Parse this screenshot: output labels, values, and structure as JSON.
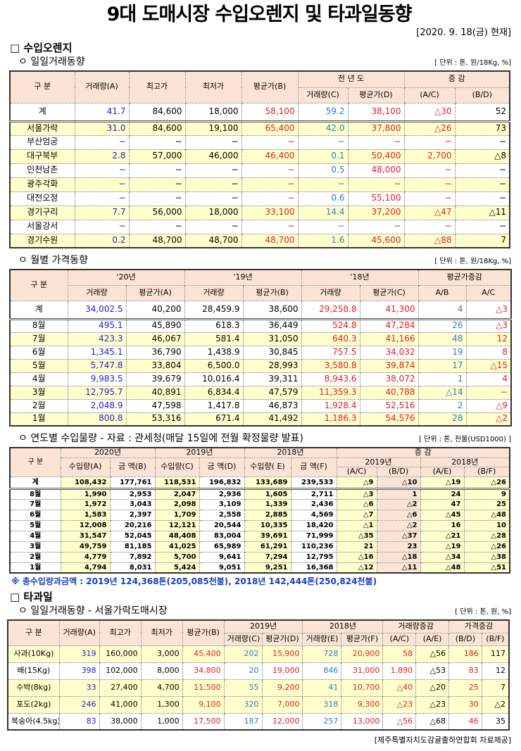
{
  "title": "9대 도매시장 수입오렌지 및 타과일동향",
  "date": "[2020. 9. 18(금) 현재]",
  "colors": {
    "blue": "#2222cc",
    "red": "#e02020",
    "teal": "#2a7fc0",
    "black": "#000000",
    "yellow": "#ffffcc",
    "peach": "#fbe4d5"
  },
  "sec1": {
    "title": "□ 수입오렌지",
    "daily": {
      "subtitle": "ㅇ 일일거래동향",
      "unit": "[ 단위 : 톤, 원/18Kg, %]",
      "headers": [
        "구    분",
        "거래량(A)",
        "최고가",
        "최저가",
        "평균가(B)",
        "전 년 도",
        "거래량(C)",
        "평균가(D)",
        "증    감",
        "(A/C)",
        "(B/D)"
      ],
      "col_colors": [
        "black",
        "blue",
        "black",
        "black",
        "red",
        "teal",
        "red",
        "red",
        "black"
      ],
      "rows": [
        {
          "yellow": false,
          "cells": [
            "계",
            "41.7",
            "84,600",
            "18,000",
            "58,100",
            "59.2",
            "38,100",
            "△30",
            "52"
          ]
        },
        {
          "yellow": true,
          "cells": [
            "서울가락",
            "31.0",
            "84,600",
            "19,100",
            "65,400",
            "42.0",
            "37,800",
            "△26",
            "73"
          ]
        },
        {
          "yellow": false,
          "cells": [
            "부산엄궁",
            "−",
            "−",
            "−",
            "−",
            "−",
            "−",
            "−",
            "−"
          ]
        },
        {
          "yellow": true,
          "cells": [
            "대구북부",
            "2.8",
            "57,000",
            "46,000",
            "46,400",
            "0.1",
            "50,400",
            "2,700",
            "△8"
          ]
        },
        {
          "yellow": false,
          "cells": [
            "인천남촌",
            "−",
            "−",
            "−",
            "−",
            "0.5",
            "48,000",
            "−",
            "−"
          ]
        },
        {
          "yellow": true,
          "cells": [
            "광주각화",
            "−",
            "−",
            "−",
            "−",
            "−",
            "−",
            "−",
            "−"
          ]
        },
        {
          "yellow": false,
          "cells": [
            "대전오정",
            "−",
            "−",
            "−",
            "−",
            "0.6",
            "55,100",
            "−",
            "−"
          ]
        },
        {
          "yellow": true,
          "cells": [
            "경기구리",
            "7.7",
            "56,000",
            "18,000",
            "33,100",
            "14.4",
            "37,200",
            "△47",
            "△11"
          ]
        },
        {
          "yellow": false,
          "cells": [
            "서울강서",
            "−",
            "−",
            "−",
            "−",
            "−",
            "−",
            "−",
            "−"
          ]
        },
        {
          "yellow": true,
          "cells": [
            "경기수원",
            "0.2",
            "48,700",
            "48,700",
            "48,700",
            "1.6",
            "45,600",
            "△88",
            "7"
          ]
        }
      ]
    },
    "monthly": {
      "subtitle": "ㅇ 월별 가격동향",
      "unit": "[ 단위 : 톤, 원/18Kg, %]",
      "headers": [
        "구    분",
        "'20년",
        "'19년",
        "'18년",
        "평균가증감",
        "거래량",
        "평균가(A)",
        "거래량",
        "평균가(B)",
        "거래량",
        "평균가(C)",
        "A/B",
        "A/C"
      ],
      "col_colors": [
        "black",
        "blue",
        "black",
        "black",
        "black",
        "red",
        "red",
        "teal",
        "red"
      ],
      "rows": [
        {
          "yellow": false,
          "cells": [
            "계",
            "34,002.5",
            "40,200",
            "28,459.9",
            "38,600",
            "29,258.8",
            "41,300",
            "4",
            "△3"
          ]
        },
        {
          "yellow": false,
          "cells": [
            "8월",
            "495.1",
            "45,890",
            "618.3",
            "36,449",
            "524.8",
            "47,284",
            "26",
            "△3"
          ]
        },
        {
          "yellow": true,
          "cells": [
            "7월",
            "423.3",
            "46,067",
            "581.4",
            "31,050",
            "640.3",
            "41,166",
            "48",
            "12"
          ]
        },
        {
          "yellow": false,
          "cells": [
            "6월",
            "1,345.1",
            "36,790",
            "1,438.9",
            "30,845",
            "757.5",
            "34,032",
            "19",
            "8"
          ]
        },
        {
          "yellow": true,
          "cells": [
            "5월",
            "5,747.8",
            "33,804",
            "6,500.0",
            "28,993",
            "3,580.8",
            "39,874",
            "17",
            "△15"
          ]
        },
        {
          "yellow": false,
          "cells": [
            "4월",
            "9,983.5",
            "39,679",
            "10,016.4",
            "39,311",
            "8,943.6",
            "38,072",
            "1",
            "4"
          ]
        },
        {
          "yellow": true,
          "cells": [
            "3월",
            "12,795.7",
            "40,891",
            "6,834.4",
            "47,579",
            "11,359.3",
            "40,788",
            "△14",
            "−"
          ]
        },
        {
          "yellow": false,
          "cells": [
            "2월",
            "2,048.9",
            "47,598",
            "1,417.8",
            "46,873",
            "1,928.4",
            "52,516",
            "2",
            "△9"
          ]
        },
        {
          "yellow": true,
          "cells": [
            "1월",
            "800.8",
            "53,316",
            "671.4",
            "41,492",
            "1,186.3",
            "54,576",
            "28",
            "△2"
          ]
        }
      ]
    },
    "yearly": {
      "subtitle": "ㅇ 연도별 수입물량 - 자료 : 관세청(매달 15일에 전월 확정물량 발표)",
      "unit": "[ 단위 : 톤, 천불(USD1000) ]",
      "headers": [
        "구 분",
        "2020년",
        "2019년",
        "2018년",
        "증    감",
        "수입량(A)",
        "금  액(B)",
        "수입량(C)",
        "금  액(D)",
        "수입량( E)",
        "금  액(F)",
        "2019년",
        "2018년",
        "(A/C)",
        "(B/D)",
        "(A/E)",
        "(B/F)"
      ],
      "rows": [
        {
          "cells": [
            "계",
            "108,432",
            "177,761",
            "118,531",
            "196,832",
            "133,689",
            "239,533",
            "△9",
            "△10",
            "△19",
            "△26"
          ]
        },
        {
          "cells": [
            "8월",
            "1,990",
            "2,953",
            "2,047",
            "2,936",
            "1,605",
            "2,711",
            "△3",
            "1",
            "24",
            "9"
          ]
        },
        {
          "cells": [
            "7월",
            "1,972",
            "3,043",
            "2,098",
            "3,109",
            "1,339",
            "2,436",
            "△6",
            "△2",
            "47",
            "25"
          ]
        },
        {
          "cells": [
            "6월",
            "1,583",
            "2,397",
            "1,709",
            "2,558",
            "2,885",
            "4,569",
            "△7",
            "△6",
            "△45",
            "△48"
          ]
        },
        {
          "cells": [
            "5월",
            "12,008",
            "20,216",
            "12,121",
            "20,544",
            "10,335",
            "18,420",
            "△1",
            "△2",
            "16",
            "10"
          ]
        },
        {
          "cells": [
            "4월",
            "31,547",
            "52,045",
            "48,408",
            "83,004",
            "39,691",
            "71,999",
            "△35",
            "△37",
            "△21",
            "△28"
          ]
        },
        {
          "cells": [
            "3월",
            "49,759",
            "81,185",
            "41,025",
            "65,989",
            "61,291",
            "110,236",
            "21",
            "23",
            "△19",
            "△26"
          ]
        },
        {
          "cells": [
            "2월",
            "4,779",
            "7,892",
            "5,700",
            "9,641",
            "7,294",
            "12,795",
            "△16",
            "△18",
            "△34",
            "△38"
          ]
        },
        {
          "cells": [
            "1월",
            "4,794",
            "8,031",
            "5,424",
            "9,051",
            "9,251",
            "16,368",
            "△12",
            "△11",
            "△48",
            "△51"
          ]
        }
      ],
      "note": "※ 총수입량과금액 : 2019년 124,368톤(205,085천불),  2018년 142,444톤(250,824천불)"
    }
  },
  "sec2": {
    "title": "□ 타과일",
    "daily": {
      "subtitle": "ㅇ 일일거래동향 - 서울가락도매시장",
      "unit": "[ 단위 : 톤, 원, %]",
      "headers": [
        "구 분",
        "거래량(A)",
        "최고가",
        "최저가",
        "평균가(B)",
        "2019년",
        "2018년",
        "거래량증감",
        "가격증감",
        "거래량(C)",
        "평균가(D)",
        "거래량(E)",
        "평균가(F)",
        "(A/C)",
        "(A/E)",
        "(B/D)",
        "(B/F)"
      ],
      "col_colors": [
        "black",
        "blue",
        "black",
        "black",
        "red",
        "teal",
        "red",
        "teal",
        "red",
        "red",
        "black",
        "red",
        "black"
      ],
      "rows": [
        {
          "yellow": true,
          "cells": [
            "사과(10Kg)",
            "319",
            "160,000",
            "3,000",
            "45,400",
            "202",
            "15,900",
            "728",
            "20,900",
            "58",
            "△56",
            "186",
            "117"
          ]
        },
        {
          "yellow": false,
          "cells": [
            "배(15Kg)",
            "398",
            "102,000",
            "8,000",
            "34,800",
            "20",
            "19,000",
            "846",
            "31,000",
            "1,890",
            "△53",
            "83",
            "12"
          ]
        },
        {
          "yellow": true,
          "cells": [
            "수박(8kg)",
            "33",
            "27,400",
            "4,700",
            "11,500",
            "55",
            "9,200",
            "41",
            "10,700",
            "△40",
            "△20",
            "25",
            "7"
          ]
        },
        {
          "yellow": true,
          "cells": [
            "포도(2kg)",
            "246",
            "41,000",
            "1,300",
            "9,100",
            "320",
            "7,000",
            "318",
            "9,300",
            "△23",
            "△23",
            "30",
            "△2"
          ]
        },
        {
          "yellow": false,
          "cells": [
            "복숭아(4.5kg)",
            "83",
            "38,000",
            "1,000",
            "17,500",
            "187",
            "12,000",
            "257",
            "13,000",
            "△56",
            "△68",
            "46",
            "35"
          ]
        }
      ]
    },
    "footer": "[제주특별자치도감귤출하연합회 자료제공]"
  }
}
